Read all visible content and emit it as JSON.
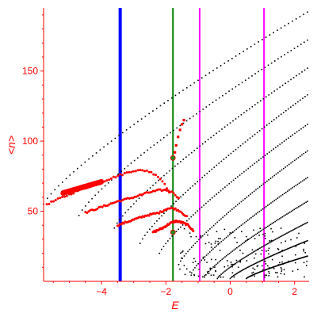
{
  "chart_data": {
    "type": "scatter",
    "title": "",
    "xlabel": "E",
    "ylabel": "<n>",
    "xlim": [
      -5.8,
      2.45
    ],
    "ylim": [
      0,
      195
    ],
    "x_ticks": [
      -4,
      -2,
      0,
      2
    ],
    "y_ticks": [
      50,
      100,
      150
    ],
    "grid": false,
    "colors": {
      "axes": "#ff0000",
      "black_points": "#000000",
      "red_points": "#ff0000",
      "green_marker": "#228b22",
      "blue_line": "#0000ff",
      "green_line": "#008000",
      "magenta_line": "#ff00ff"
    },
    "vertical_lines": [
      {
        "x": -3.42,
        "color": "#0000ff",
        "width": "thick"
      },
      {
        "x": -1.78,
        "color": "#008000",
        "width": "thin"
      },
      {
        "x": -0.95,
        "color": "#ff00ff",
        "width": "thin"
      },
      {
        "x": 1.05,
        "color": "#ff00ff",
        "width": "thin"
      }
    ],
    "black_branches": [
      {
        "x": [
          -5.8,
          2.4
        ],
        "y": [
          55,
          192
        ]
      },
      {
        "x": [
          -4.7,
          2.4
        ],
        "y": [
          47,
          172
        ]
      },
      {
        "x": [
          -3.6,
          2.4
        ],
        "y": [
          38,
          152
        ]
      },
      {
        "x": [
          -2.8,
          2.4
        ],
        "y": [
          27,
          133
        ]
      },
      {
        "x": [
          -2.2,
          2.4
        ],
        "y": [
          20,
          112
        ]
      },
      {
        "x": [
          -1.6,
          2.4
        ],
        "y": [
          12,
          93
        ]
      },
      {
        "x": [
          -1.2,
          2.4
        ],
        "y": [
          6,
          74
        ]
      },
      {
        "x": [
          -0.8,
          2.4
        ],
        "y": [
          3,
          57
        ]
      },
      {
        "x": [
          -0.4,
          2.4
        ],
        "y": [
          2,
          42
        ]
      },
      {
        "x": [
          0.0,
          2.4
        ],
        "y": [
          2,
          29
        ]
      },
      {
        "x": [
          0.5,
          2.4
        ],
        "y": [
          2,
          18
        ]
      }
    ],
    "black_cluster": {
      "x": [
        -1.6,
        2.4
      ],
      "y": [
        3,
        38
      ],
      "count": 170
    },
    "red_branches": [
      {
        "x": [
          -5.7,
          -4.8,
          -4.0,
          -3.4,
          -3.0,
          -2.6,
          -2.3,
          -2.05,
          -1.9
        ],
        "y": [
          55,
          64,
          71,
          76,
          79,
          79,
          76,
          70,
          64
        ]
      },
      {
        "x": [
          -4.5,
          -4.0,
          -3.5,
          -3.0,
          -2.6,
          -2.2,
          -1.95,
          -1.75,
          -1.6
        ],
        "y": [
          49,
          53,
          57,
          60,
          63,
          65,
          65,
          63,
          59
        ]
      },
      {
        "x": [
          -3.5,
          -3.0,
          -2.6,
          -2.2,
          -1.95,
          -1.75,
          -1.55,
          -1.35
        ],
        "y": [
          40,
          44,
          47,
          49,
          52,
          52,
          50,
          46
        ]
      },
      {
        "x": [
          -2.4,
          -2.1,
          -1.9,
          -1.7,
          -1.5,
          -1.3,
          -1.15
        ],
        "y": [
          35,
          38,
          41,
          43,
          42,
          40,
          36
        ]
      }
    ],
    "red_thick_band": {
      "x": [
        -5.2,
        -4.0
      ],
      "y": [
        63,
        71
      ]
    },
    "red_vertical_points": [
      {
        "x": -1.8,
        "y": 88
      },
      {
        "x": -1.72,
        "y": 92
      },
      {
        "x": -1.68,
        "y": 97
      },
      {
        "x": -1.62,
        "y": 103
      },
      {
        "x": -1.56,
        "y": 108
      },
      {
        "x": -1.5,
        "y": 112
      },
      {
        "x": -1.44,
        "y": 115
      }
    ],
    "green_markers": [
      {
        "x": -1.78,
        "y": 88
      },
      {
        "x": -1.78,
        "y": 35
      }
    ]
  }
}
